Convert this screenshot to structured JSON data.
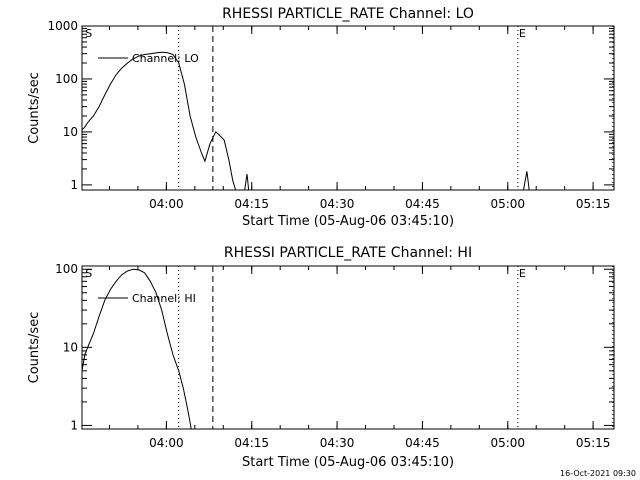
{
  "footer": {
    "timestamp": "16-Oct-2021 09:30"
  },
  "chart_data": [
    {
      "type": "line",
      "title": "RHESSI PARTICLE_RATE Channel: LO",
      "xlabel": "Start Time (05-Aug-06 03:45:10)",
      "ylabel": "Counts/sec",
      "yscale": "log",
      "xlim_minutes": [
        0,
        93.5
      ],
      "ylim": [
        0.8,
        1000
      ],
      "x_ticks": [
        {
          "t": 14.83,
          "label": "04:00"
        },
        {
          "t": 29.83,
          "label": "04:15"
        },
        {
          "t": 44.83,
          "label": "04:30"
        },
        {
          "t": 59.83,
          "label": "04:45"
        },
        {
          "t": 74.83,
          "label": "05:00"
        },
        {
          "t": 89.83,
          "label": "05:15"
        }
      ],
      "y_ticks": [
        {
          "v": 1,
          "label": "1"
        },
        {
          "v": 10,
          "label": "10"
        },
        {
          "v": 100,
          "label": "100"
        },
        {
          "v": 1000,
          "label": "1000"
        }
      ],
      "legend": {
        "label": "Channel: LO",
        "position": "top-left"
      },
      "markers": [
        {
          "t": 0.4,
          "label": "S",
          "line": "none"
        },
        {
          "t": 17.0,
          "label": "",
          "line": "dotted"
        },
        {
          "t": 23.0,
          "label": "",
          "line": "dashed"
        },
        {
          "t": 76.6,
          "label": "E",
          "line": "dotted"
        },
        {
          "t": 93.3,
          "label": "",
          "line": "dotted"
        }
      ],
      "series": [
        {
          "values_minutes": [
            [
              0.0,
              11
            ],
            [
              0.4,
              12
            ],
            [
              1,
              15
            ],
            [
              2,
              20
            ],
            [
              3,
              30
            ],
            [
              4,
              50
            ],
            [
              5,
              80
            ],
            [
              6,
              120
            ],
            [
              7,
              160
            ],
            [
              8,
              200
            ],
            [
              9,
              240
            ],
            [
              10,
              270
            ],
            [
              11,
              290
            ],
            [
              12,
              300
            ],
            [
              13,
              310
            ],
            [
              14,
              320
            ],
            [
              15,
              315
            ],
            [
              16,
              290
            ],
            [
              17,
              200
            ],
            [
              18,
              80
            ],
            [
              19,
              20
            ],
            [
              20,
              8
            ],
            [
              21,
              4
            ],
            [
              21.6,
              2.8
            ],
            [
              22.5,
              6
            ],
            [
              23.5,
              10
            ],
            [
              24,
              9
            ],
            [
              25,
              7
            ],
            [
              25.8,
              3
            ],
            [
              26.5,
              1.2
            ],
            [
              27,
              0.8
            ],
            null,
            [
              28.6,
              0.8
            ],
            [
              29,
              1.6
            ],
            [
              29.3,
              0.8
            ],
            null,
            [
              77.6,
              0.8
            ],
            [
              78.2,
              1.8
            ],
            [
              78.6,
              0.8
            ]
          ]
        }
      ]
    },
    {
      "type": "line",
      "title": "RHESSI PARTICLE_RATE Channel: HI",
      "xlabel": "Start Time (05-Aug-06 03:45:10)",
      "ylabel": "Counts/sec",
      "yscale": "log",
      "xlim_minutes": [
        0,
        93.5
      ],
      "ylim": [
        0.9,
        110
      ],
      "x_ticks": [
        {
          "t": 14.83,
          "label": "04:00"
        },
        {
          "t": 29.83,
          "label": "04:15"
        },
        {
          "t": 44.83,
          "label": "04:30"
        },
        {
          "t": 59.83,
          "label": "04:45"
        },
        {
          "t": 74.83,
          "label": "05:00"
        },
        {
          "t": 89.83,
          "label": "05:15"
        }
      ],
      "y_ticks": [
        {
          "v": 1,
          "label": "1"
        },
        {
          "v": 10,
          "label": "10"
        },
        {
          "v": 100,
          "label": "100"
        }
      ],
      "legend": {
        "label": "Channel: HI",
        "position": "top-left"
      },
      "markers": [
        {
          "t": 0.4,
          "label": "S",
          "line": "none"
        },
        {
          "t": 17.0,
          "label": "",
          "line": "dotted"
        },
        {
          "t": 23.0,
          "label": "",
          "line": "dashed"
        },
        {
          "t": 76.6,
          "label": "E",
          "line": "dotted"
        },
        {
          "t": 93.3,
          "label": "",
          "line": "dotted"
        }
      ],
      "series": [
        {
          "values_minutes": [
            [
              0.0,
              5
            ],
            [
              0.5,
              8
            ],
            [
              1,
              10
            ],
            [
              2,
              15
            ],
            [
              3,
              25
            ],
            [
              4,
              40
            ],
            [
              5,
              55
            ],
            [
              6,
              70
            ],
            [
              7,
              85
            ],
            [
              8,
              95
            ],
            [
              9,
              100
            ],
            [
              10,
              98
            ],
            [
              11,
              90
            ],
            [
              12,
              70
            ],
            [
              13,
              50
            ],
            [
              14,
              30
            ],
            [
              15,
              15
            ],
            [
              16,
              8
            ],
            [
              17,
              5
            ],
            [
              17.8,
              3
            ],
            [
              18.5,
              1.7
            ],
            [
              18.9,
              1.2
            ],
            [
              19.2,
              0.9
            ]
          ]
        }
      ]
    }
  ]
}
